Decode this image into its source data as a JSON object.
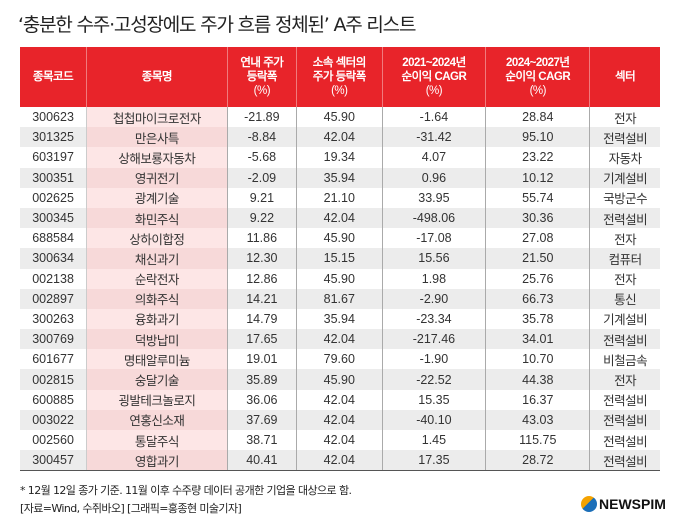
{
  "title": "‘충분한 수주·고성장에도 주가 흐름 정체된’ A주 리스트",
  "columns": [
    {
      "l1": "종목코드",
      "l2": "",
      "u": ""
    },
    {
      "l1": "종목명",
      "l2": "",
      "u": ""
    },
    {
      "l1": "연내 주가",
      "l2": "등락폭",
      "u": "(%)"
    },
    {
      "l1": "소속 섹터의",
      "l2": "주가 등락폭",
      "u": "(%)"
    },
    {
      "l1": "2021~2024년",
      "l2": "순이익 CAGR",
      "u": "(%)"
    },
    {
      "l1": "2024~2027년",
      "l2": "순이익 CAGR",
      "u": "(%)"
    },
    {
      "l1": "섹터",
      "l2": "",
      "u": ""
    }
  ],
  "rows": [
    [
      "300623",
      "첩첩마이크로전자",
      "-21.89",
      "45.90",
      "-1.64",
      "28.84",
      "전자"
    ],
    [
      "301325",
      "만은사특",
      "-8.84",
      "42.04",
      "-31.42",
      "95.10",
      "전력설비"
    ],
    [
      "603197",
      "상해보룡자동차",
      "-5.68",
      "19.34",
      "4.07",
      "23.22",
      "자동차"
    ],
    [
      "300351",
      "영귀전기",
      "-2.09",
      "35.94",
      "0.96",
      "10.12",
      "기계설비"
    ],
    [
      "002625",
      "광계기술",
      "9.21",
      "21.10",
      "33.95",
      "55.74",
      "국방군수"
    ],
    [
      "300345",
      "화민주식",
      "9.22",
      "42.04",
      "-498.06",
      "30.36",
      "전력설비"
    ],
    [
      "688584",
      "상하이합정",
      "11.86",
      "45.90",
      "-17.08",
      "27.08",
      "전자"
    ],
    [
      "300634",
      "채신과기",
      "12.30",
      "15.15",
      "15.56",
      "21.50",
      "컴퓨터"
    ],
    [
      "002138",
      "순락전자",
      "12.86",
      "45.90",
      "1.98",
      "25.76",
      "전자"
    ],
    [
      "002897",
      "의화주식",
      "14.21",
      "81.67",
      "-2.90",
      "66.73",
      "통신"
    ],
    [
      "300263",
      "융화과기",
      "14.79",
      "35.94",
      "-23.34",
      "35.78",
      "기계설비"
    ],
    [
      "300769",
      "덕방납미",
      "17.65",
      "42.04",
      "-217.46",
      "34.01",
      "전력설비"
    ],
    [
      "601677",
      "명태알루미늄",
      "19.01",
      "79.60",
      "-1.90",
      "10.70",
      "비철금속"
    ],
    [
      "002815",
      "숭달기술",
      "35.89",
      "45.90",
      "-22.52",
      "44.38",
      "전자"
    ],
    [
      "600885",
      "굉발테크놀로지",
      "36.06",
      "42.04",
      "15.35",
      "16.37",
      "전력설비"
    ],
    [
      "003022",
      "연홍신소재",
      "37.69",
      "42.04",
      "-40.10",
      "43.03",
      "전력설비"
    ],
    [
      "002560",
      "통달주식",
      "38.71",
      "42.04",
      "1.45",
      "115.75",
      "전력설비"
    ],
    [
      "300457",
      "영합과기",
      "40.41",
      "42.04",
      "17.35",
      "28.72",
      "전력설비"
    ]
  ],
  "footnote1": "* 12월 12일 종가 기준. 11월 이후 수주량 데이터 공개한 기업을 대상으로 함.",
  "footnote2": "[자료=Wind, 수쥐바오] [그래픽=홍종현 미술기자]",
  "logo": "NEWSPIM",
  "colors": {
    "header": "#e8242a",
    "name_col": "#fde6e6",
    "alt_row": "#ececec"
  }
}
